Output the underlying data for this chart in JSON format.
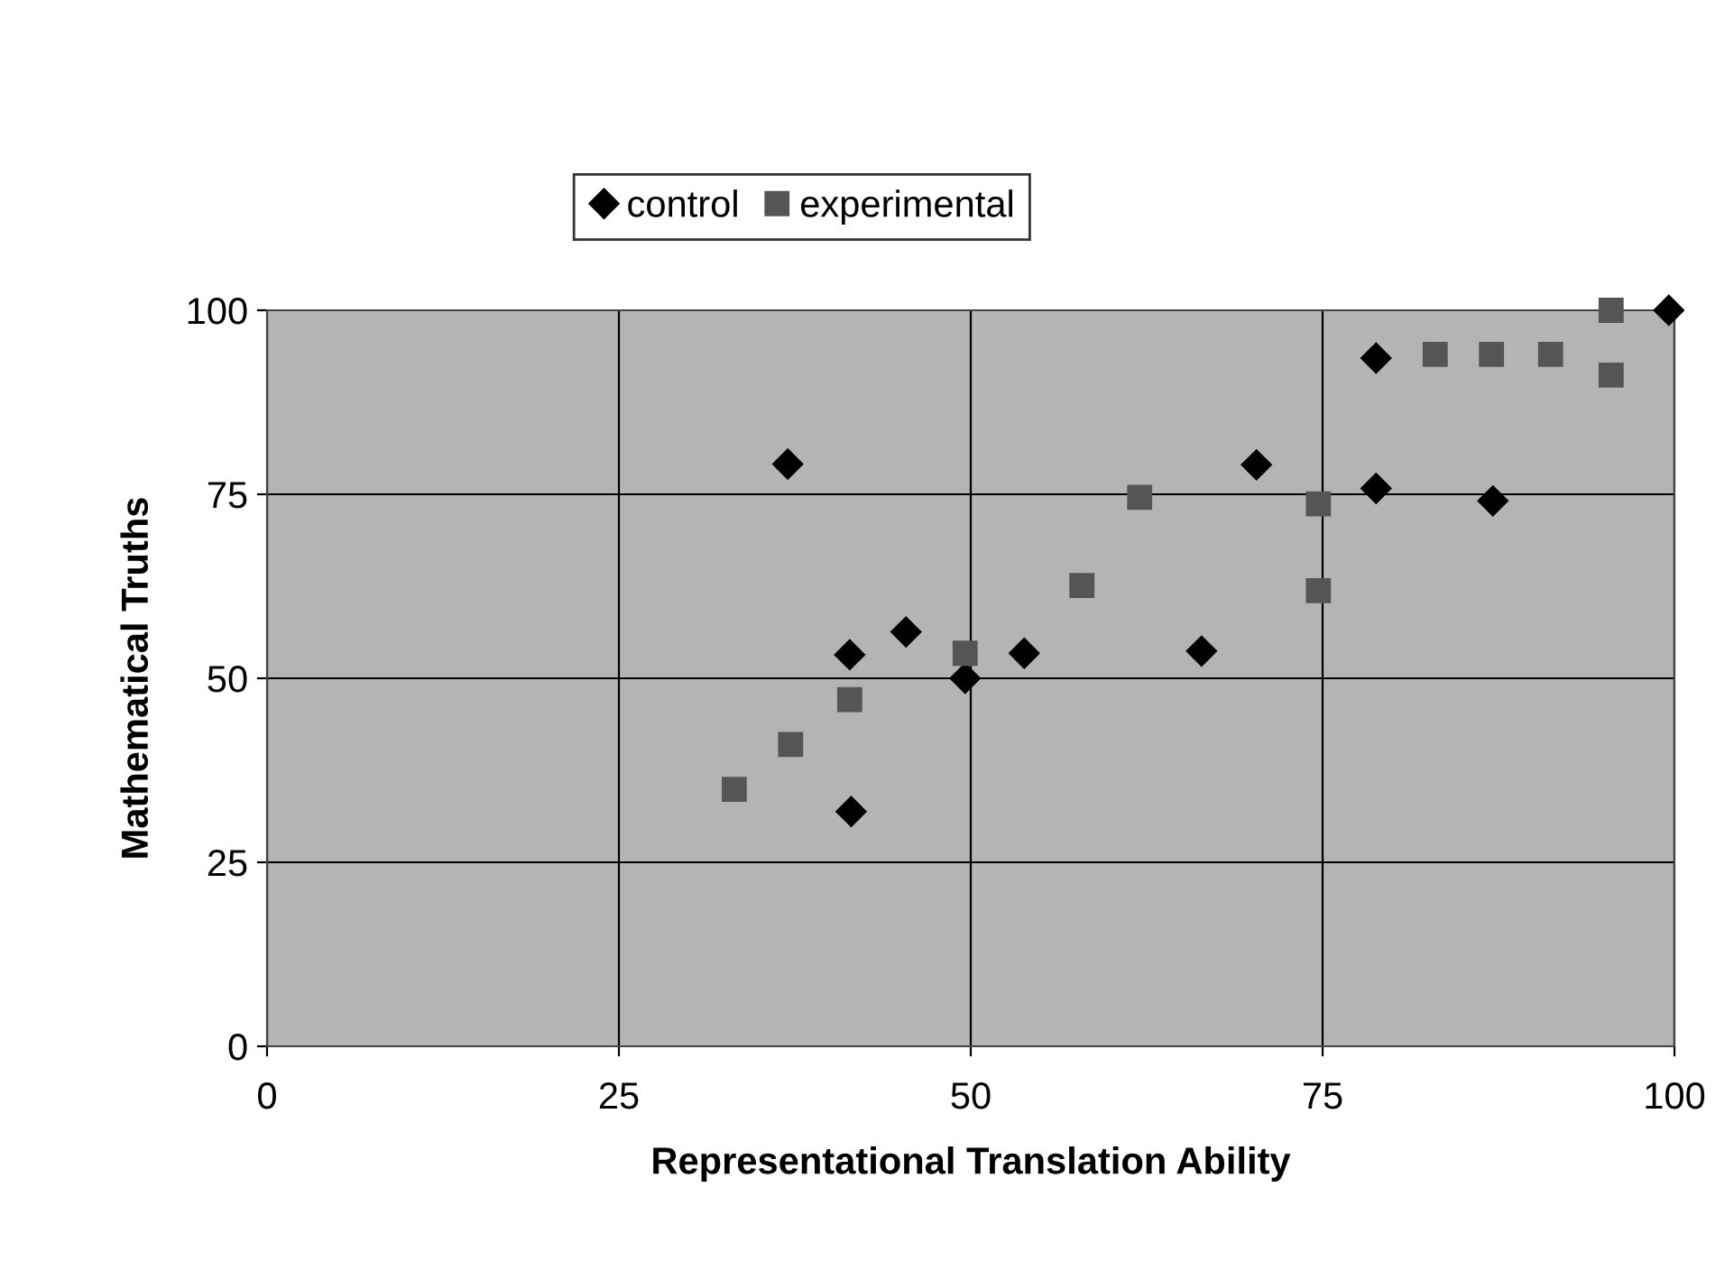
{
  "chart_data": {
    "type": "scatter",
    "xlabel": "Representational Translation Ability",
    "ylabel": "Mathematical Truths",
    "xlim": [
      0,
      100
    ],
    "xticks": [
      0,
      25,
      50,
      75,
      100
    ],
    "ylim": [
      0,
      100
    ],
    "yticks": [
      0,
      25,
      50,
      75,
      100
    ],
    "grid": true,
    "legend": "top",
    "series": [
      {
        "name": "control",
        "color": "#000000",
        "marker": "diamond",
        "x": [
          37.0,
          41.4,
          45.4,
          49.6,
          53.8,
          66.4,
          41.5,
          70.3,
          78.8,
          78.8,
          87.1,
          99.6
        ],
        "values": [
          79.1,
          53.2,
          56.3,
          50.0,
          53.4,
          53.7,
          31.9,
          79.0,
          93.5,
          75.8,
          74.1,
          100
        ]
      },
      {
        "name": "experimental",
        "color": "#555555",
        "marker": "square",
        "x": [
          62.0,
          57.9,
          49.6,
          41.4,
          37.2,
          33.2,
          83.0,
          87.0,
          91.2,
          95.5,
          95.5,
          74.7,
          74.7
        ],
        "values": [
          74.6,
          62.6,
          53.4,
          47.1,
          41.0,
          34.9,
          94.0,
          94.0,
          94.0,
          91.2,
          100,
          73.7,
          61.9
        ]
      }
    ]
  }
}
